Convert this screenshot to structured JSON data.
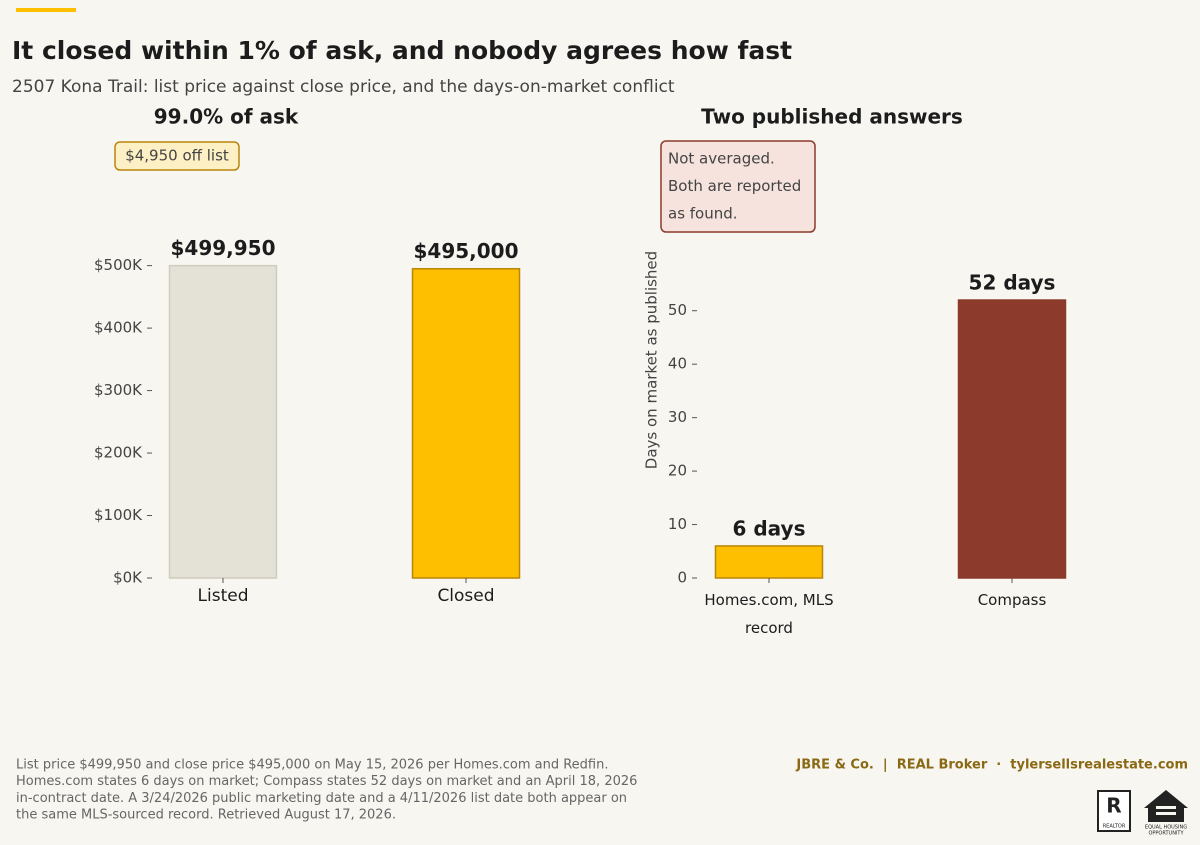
{
  "title": "It closed within 1% of ask, and nobody agrees how fast",
  "subtitle": "2507 Kona Trail: list price against close price, and the days-on-market conflict",
  "chart_data": [
    {
      "type": "bar",
      "title": "99.0% of ask",
      "annotation": [
        "$4,950 off list"
      ],
      "categories": [
        "Listed",
        "Closed"
      ],
      "values": [
        499950,
        495000
      ],
      "value_labels": [
        "$499,950",
        "$495,000"
      ],
      "colors": [
        "#e4e1d6",
        "#fdbf00"
      ],
      "edge_colors": [
        "#cfcbbd",
        "#b8860b"
      ],
      "ylim": [
        0,
        525000
      ],
      "yticks": [
        {
          "value": 0,
          "label": "$0K"
        },
        {
          "value": 100000,
          "label": "$100K"
        },
        {
          "value": 200000,
          "label": "$200K"
        },
        {
          "value": 300000,
          "label": "$300K"
        },
        {
          "value": 400000,
          "label": "$400K"
        },
        {
          "value": 500000,
          "label": "$500K"
        }
      ]
    },
    {
      "type": "bar",
      "title": "Two published answers",
      "annotation": [
        "Not averaged.",
        "Both are reported",
        "as found."
      ],
      "y_label": "Days on market as published",
      "categories": [
        "Homes.com, MLS record",
        "Compass"
      ],
      "values": [
        6,
        52
      ],
      "value_labels": [
        "6 days",
        "52 days"
      ],
      "colors": [
        "#fdbf00",
        "#8b3a2b"
      ],
      "edge_colors": [
        "#b8860b",
        "#8b3a2b"
      ],
      "ylim": [
        0,
        55
      ],
      "yticks": [
        0,
        10,
        20,
        30,
        40,
        50
      ]
    }
  ],
  "footer": {
    "notes": [
      "List price $499,950 and close price $495,000 on May 15, 2026 per Homes.com and Redfin.",
      "Homes.com states 6 days on market; Compass states 52 days on market and an April 18, 2026",
      "in-contract date. A 3/24/2026 public marketing date and a 4/11/2026 list date both appear on",
      "the same MLS-sourced record. Retrieved August 17, 2026."
    ],
    "brand": "JBRE & Co.  |  REAL Broker  ·  tylersellsrealestate.com",
    "realtor_mark": "R",
    "realtor_text": "REALTOR",
    "eho_text": [
      "EQUAL HOUSING",
      "OPPORTUNITY"
    ]
  }
}
